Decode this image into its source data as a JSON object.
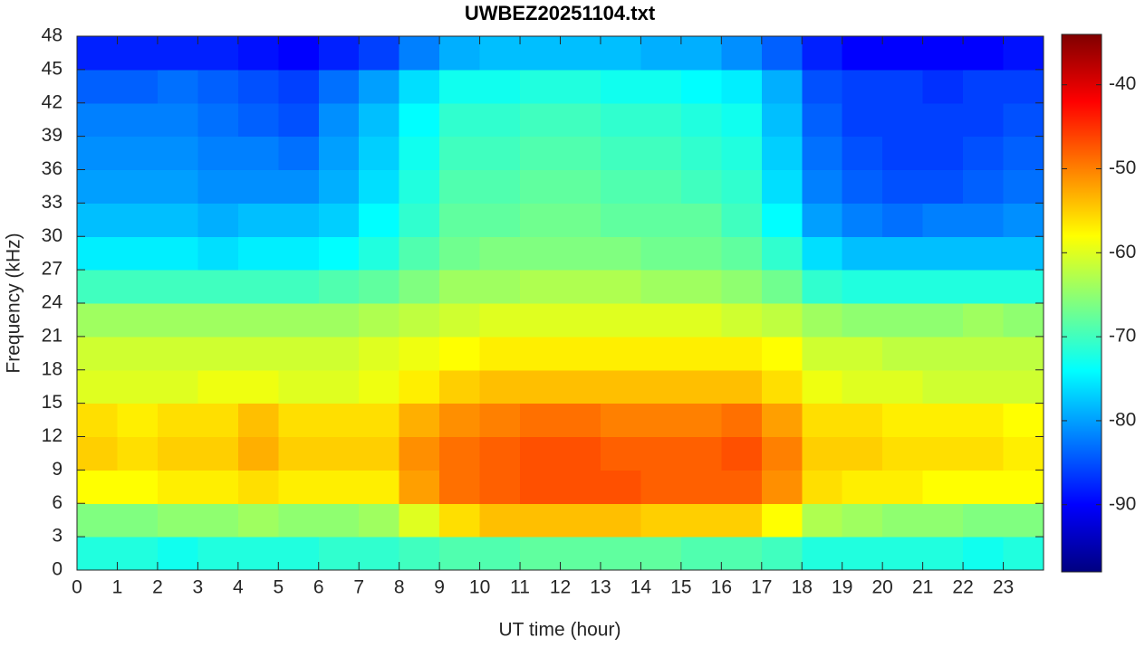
{
  "chart_data": {
    "type": "heatmap",
    "title": "UWBEZ20251104.txt",
    "x_label": "UT time (hour)",
    "y_label": "Frequency (kHz)",
    "colormap": "jet",
    "x_bins": [
      0,
      1,
      2,
      3,
      4,
      5,
      6,
      7,
      8,
      9,
      10,
      11,
      12,
      13,
      14,
      15,
      16,
      17,
      18,
      19,
      20,
      21,
      22,
      23,
      24
    ],
    "y_bins": [
      0,
      3,
      6,
      9,
      12,
      15,
      18,
      21,
      24,
      27,
      30,
      33,
      36,
      39,
      42,
      45,
      48
    ],
    "xlim": [
      0,
      24
    ],
    "ylim": [
      0,
      48
    ],
    "xticks": [
      0,
      1,
      2,
      3,
      4,
      5,
      6,
      7,
      8,
      9,
      10,
      11,
      12,
      13,
      14,
      15,
      16,
      17,
      18,
      19,
      20,
      21,
      22,
      23
    ],
    "yticks": [
      0,
      3,
      6,
      9,
      12,
      15,
      18,
      21,
      24,
      27,
      30,
      33,
      36,
      39,
      42,
      45,
      48
    ],
    "clim": [
      -98,
      -34
    ],
    "cticks": [
      -90,
      -80,
      -70,
      -60,
      -50,
      -40
    ],
    "values": [
      [
        -72,
        -72,
        -73,
        -72,
        -72,
        -72,
        -71,
        -71,
        -70,
        -69,
        -69,
        -68,
        -68,
        -68,
        -68,
        -69,
        -69,
        -70,
        -72,
        -72,
        -72,
        -72,
        -73,
        -72
      ],
      [
        -66,
        -66,
        -65,
        -65,
        -64,
        -65,
        -65,
        -64,
        -60,
        -56,
        -54,
        -54,
        -54,
        -54,
        -55,
        -55,
        -55,
        -58,
        -63,
        -64,
        -65,
        -65,
        -66,
        -66
      ],
      [
        -58,
        -58,
        -57,
        -57,
        -56,
        -57,
        -57,
        -57,
        -52,
        -49,
        -48,
        -47,
        -47,
        -47,
        -48,
        -48,
        -48,
        -51,
        -56,
        -57,
        -57,
        -58,
        -58,
        -58
      ],
      [
        -55,
        -56,
        -55,
        -55,
        -53,
        -55,
        -55,
        -55,
        -51,
        -49,
        -48,
        -47,
        -47,
        -48,
        -48,
        -48,
        -47,
        -50,
        -55,
        -55,
        -56,
        -56,
        -56,
        -57
      ],
      [
        -56,
        -57,
        -56,
        -56,
        -54,
        -56,
        -56,
        -56,
        -53,
        -51,
        -50,
        -49,
        -49,
        -50,
        -50,
        -50,
        -49,
        -52,
        -56,
        -56,
        -57,
        -57,
        -57,
        -58
      ],
      [
        -60,
        -60,
        -60,
        -59,
        -59,
        -60,
        -60,
        -59,
        -57,
        -55,
        -54,
        -54,
        -54,
        -54,
        -54,
        -54,
        -54,
        -56,
        -59,
        -60,
        -60,
        -61,
        -61,
        -61
      ],
      [
        -61,
        -61,
        -61,
        -61,
        -61,
        -61,
        -61,
        -60,
        -59,
        -58,
        -57,
        -57,
        -57,
        -57,
        -57,
        -57,
        -57,
        -58,
        -61,
        -61,
        -62,
        -62,
        -62,
        -62
      ],
      [
        -64,
        -64,
        -64,
        -64,
        -64,
        -64,
        -64,
        -63,
        -62,
        -61,
        -60,
        -60,
        -60,
        -60,
        -60,
        -60,
        -61,
        -62,
        -64,
        -65,
        -65,
        -65,
        -64,
        -65
      ],
      [
        -70,
        -70,
        -70,
        -70,
        -70,
        -70,
        -69,
        -68,
        -66,
        -64,
        -64,
        -63,
        -63,
        -63,
        -64,
        -64,
        -65,
        -67,
        -71,
        -72,
        -72,
        -72,
        -72,
        -72
      ],
      [
        -75,
        -75,
        -75,
        -76,
        -75,
        -75,
        -74,
        -72,
        -69,
        -67,
        -66,
        -66,
        -66,
        -66,
        -67,
        -67,
        -68,
        -71,
        -76,
        -78,
        -78,
        -78,
        -78,
        -78
      ],
      [
        -78,
        -78,
        -78,
        -79,
        -78,
        -78,
        -77,
        -74,
        -71,
        -68,
        -68,
        -67,
        -67,
        -68,
        -68,
        -68,
        -70,
        -74,
        -80,
        -82,
        -83,
        -82,
        -82,
        -81
      ],
      [
        -80,
        -80,
        -80,
        -81,
        -81,
        -81,
        -79,
        -76,
        -72,
        -69,
        -69,
        -68,
        -68,
        -69,
        -69,
        -70,
        -71,
        -76,
        -82,
        -84,
        -85,
        -85,
        -84,
        -83
      ],
      [
        -81,
        -81,
        -81,
        -82,
        -82,
        -83,
        -80,
        -77,
        -73,
        -70,
        -70,
        -69,
        -69,
        -70,
        -70,
        -71,
        -72,
        -77,
        -83,
        -85,
        -86,
        -86,
        -85,
        -84
      ],
      [
        -82,
        -82,
        -82,
        -83,
        -84,
        -85,
        -81,
        -78,
        -74,
        -71,
        -71,
        -70,
        -70,
        -71,
        -71,
        -72,
        -73,
        -78,
        -84,
        -86,
        -86,
        -86,
        -86,
        -85
      ],
      [
        -84,
        -84,
        -83,
        -84,
        -85,
        -86,
        -83,
        -80,
        -76,
        -73,
        -73,
        -72,
        -72,
        -73,
        -73,
        -74,
        -75,
        -79,
        -85,
        -86,
        -86,
        -87,
        -86,
        -86
      ],
      [
        -88,
        -88,
        -88,
        -88,
        -89,
        -90,
        -88,
        -86,
        -82,
        -79,
        -78,
        -78,
        -78,
        -78,
        -79,
        -79,
        -81,
        -84,
        -88,
        -90,
        -90,
        -90,
        -90,
        -89
      ]
    ]
  }
}
